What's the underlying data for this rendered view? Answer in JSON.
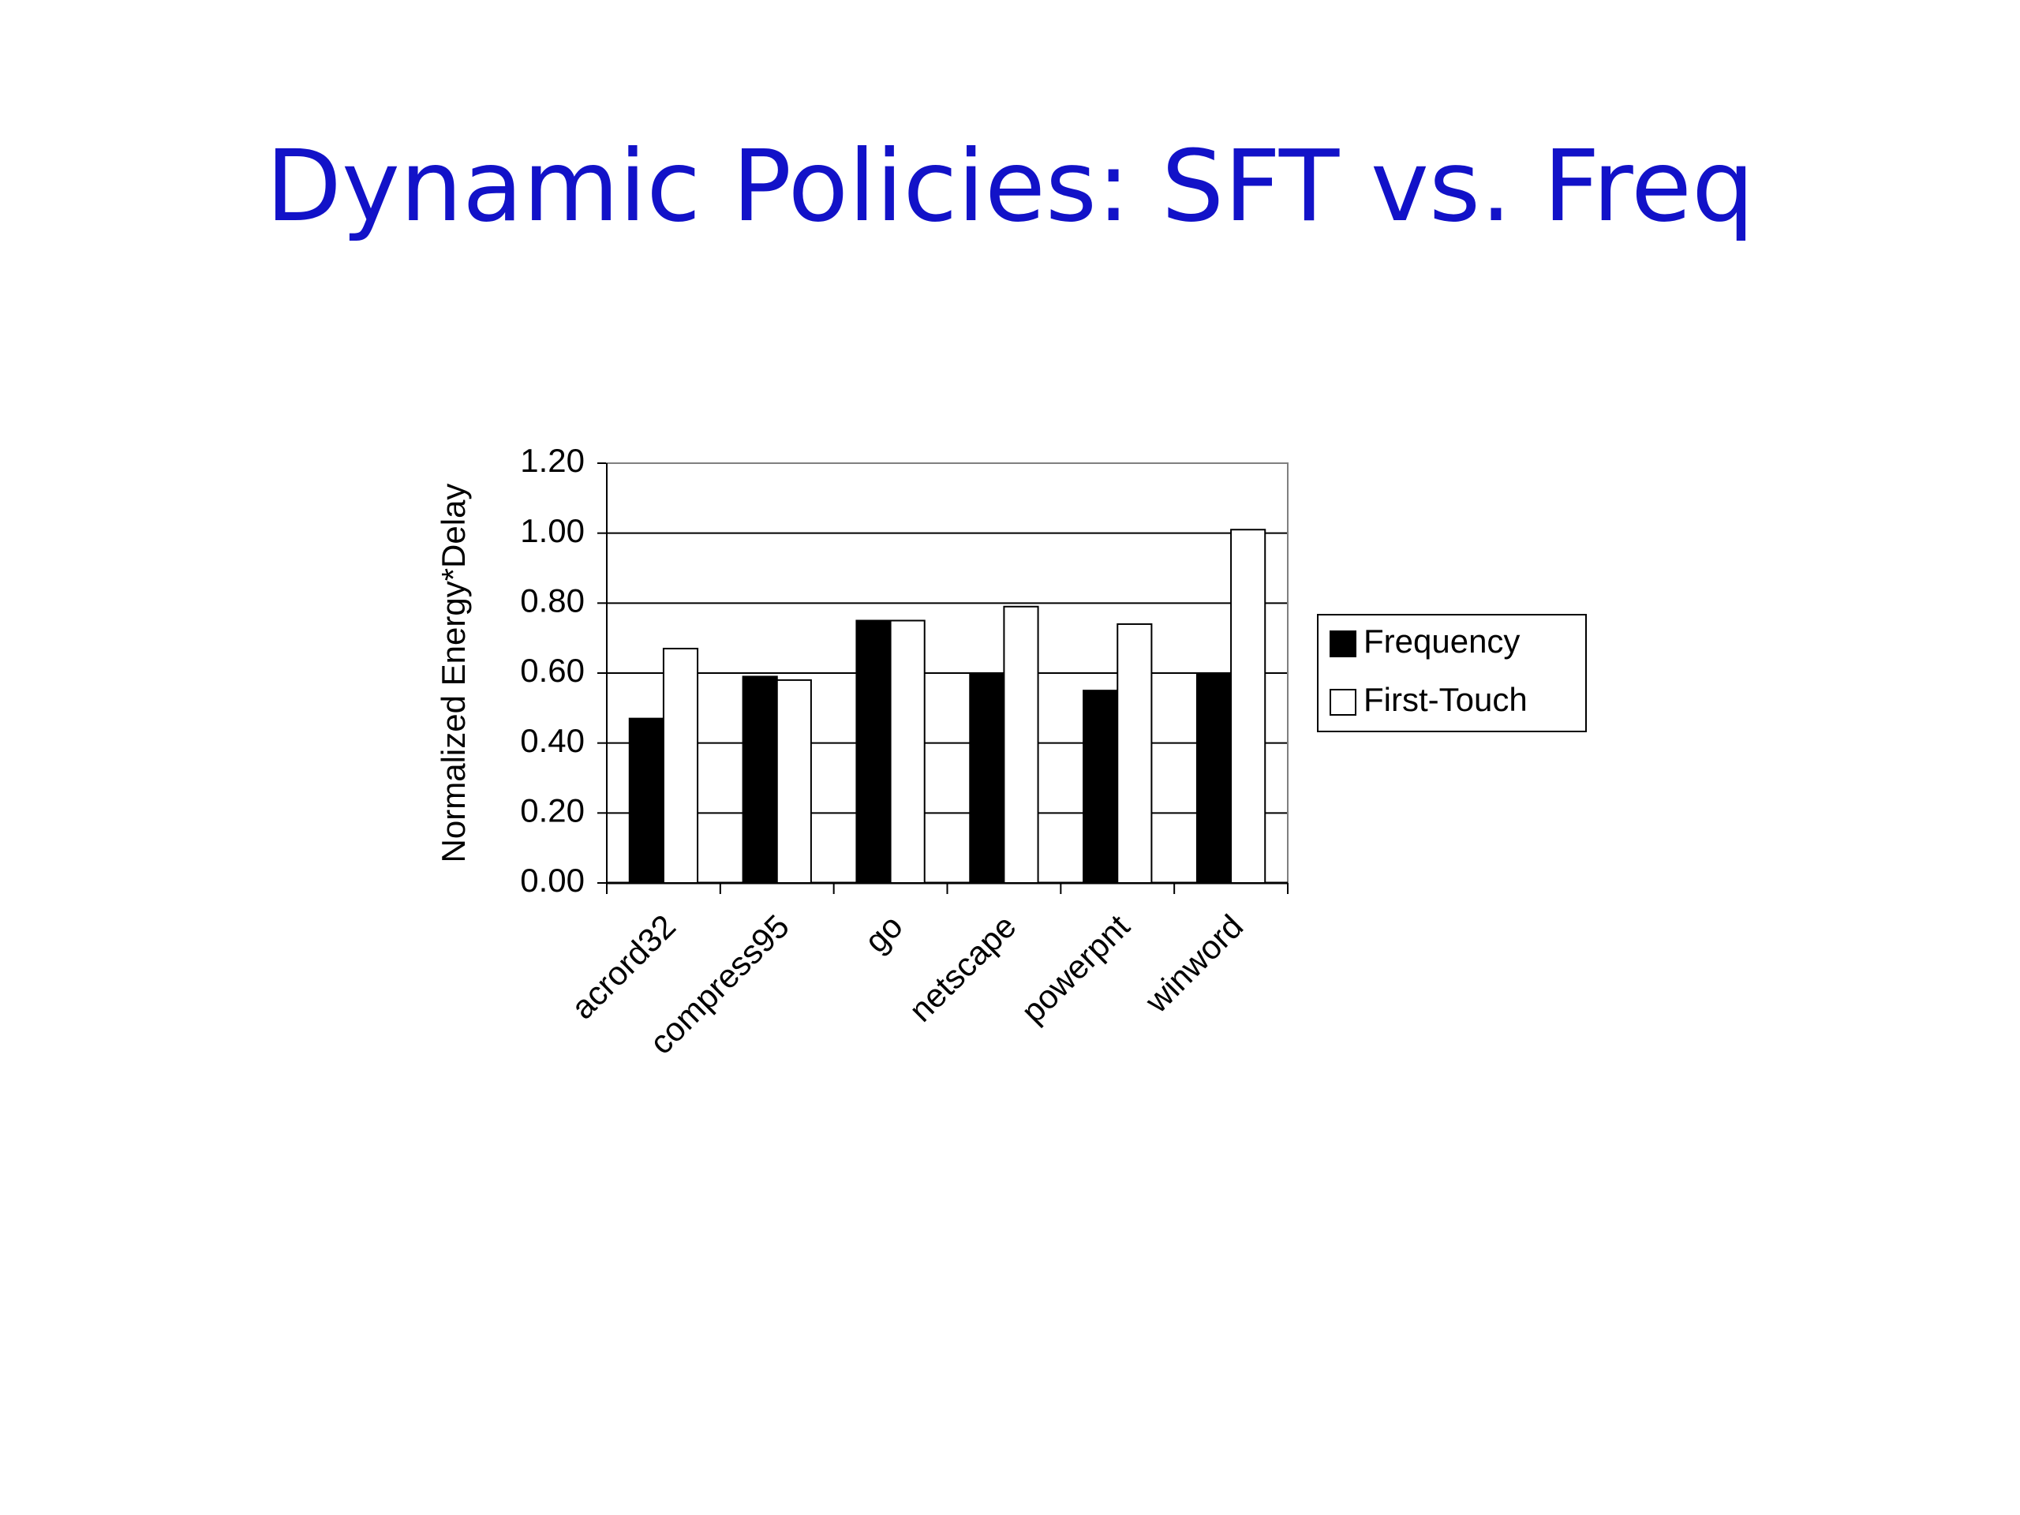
{
  "chart_data": {
    "type": "bar",
    "title": "Dynamic Policies: SFT vs. Freq",
    "y_label": "Normalized Energy*Delay",
    "categories": [
      "acrord32",
      "compress95",
      "go",
      "netscape",
      "powerpnt",
      "winword"
    ],
    "series": [
      {
        "name": "Frequency",
        "color": "#000000",
        "values": [
          0.47,
          0.59,
          0.75,
          0.6,
          0.55,
          0.6
        ]
      },
      {
        "name": "First-Touch",
        "color": "#ffffff",
        "values": [
          0.67,
          0.58,
          0.75,
          0.79,
          0.74,
          1.01
        ]
      }
    ],
    "ylim": [
      0,
      1.2
    ],
    "yticks": [
      {
        "value": 0,
        "label": "0.00"
      },
      {
        "value": 0.2,
        "label": "0.20"
      },
      {
        "value": 0.4,
        "label": "0.40"
      },
      {
        "value": 0.6,
        "label": "0.60"
      },
      {
        "value": 0.8,
        "label": "0.80"
      },
      {
        "value": 1,
        "label": "1.00"
      },
      {
        "value": 1.2,
        "label": "1.20"
      }
    ],
    "grid": true,
    "legend": "right"
  }
}
